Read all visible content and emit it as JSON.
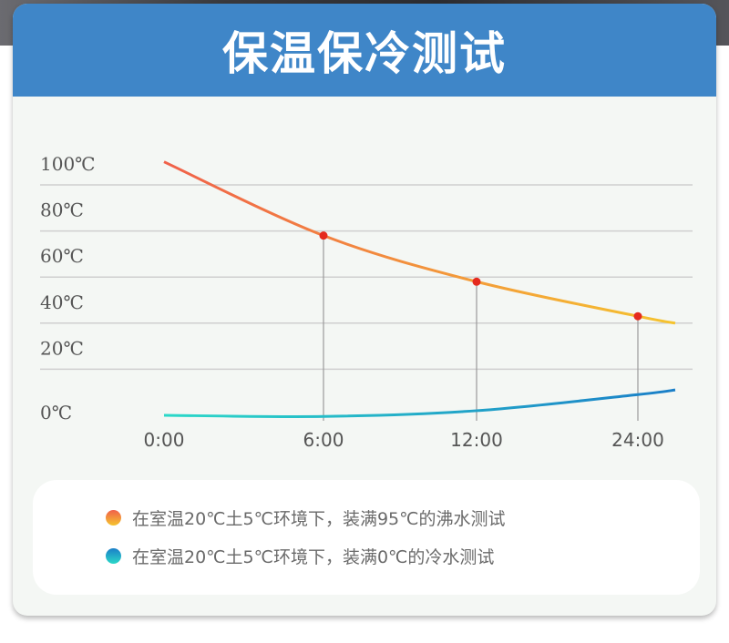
{
  "header": {
    "title": "保温保冷测试"
  },
  "chart_data": {
    "type": "line",
    "x_ticks": [
      "0:00",
      "6:00",
      "12:00",
      "24:00"
    ],
    "y_ticks": [
      "0℃",
      "20℃",
      "40℃",
      "60℃",
      "80℃",
      "100℃"
    ],
    "ylim": [
      0,
      100
    ],
    "grid": true,
    "series": [
      {
        "name": "在室温20℃土5℃环境下，装满95℃的沸水测试",
        "gradient": [
          "#f0604a",
          "#f5c42e"
        ],
        "points": [
          [
            0,
            110
          ],
          [
            6,
            78
          ],
          [
            12,
            58
          ],
          [
            24,
            43
          ],
          [
            25.5,
            40
          ]
        ],
        "markers": [
          [
            6,
            78
          ],
          [
            12,
            58
          ],
          [
            24,
            43
          ]
        ],
        "marker_color": "#e52a1e"
      },
      {
        "name": "在室温20℃土5℃环境下，装满0℃的冷水测试",
        "gradient": [
          "#2bd8c8",
          "#1a7ec8"
        ],
        "points": [
          [
            0,
            0
          ],
          [
            6,
            -0.5
          ],
          [
            12,
            2
          ],
          [
            24,
            9
          ],
          [
            25.5,
            11
          ]
        ]
      }
    ]
  },
  "legend": {
    "items": [
      {
        "label": "在室温20℃土5℃环境下，装满95℃的沸水测试",
        "color_top": "#f0604a",
        "color_bottom": "#f5c42e"
      },
      {
        "label": "在室温20℃土5℃环境下，装满0℃的冷水测试",
        "color_top": "#1a7ec8",
        "color_bottom": "#2bd8c8"
      }
    ]
  }
}
